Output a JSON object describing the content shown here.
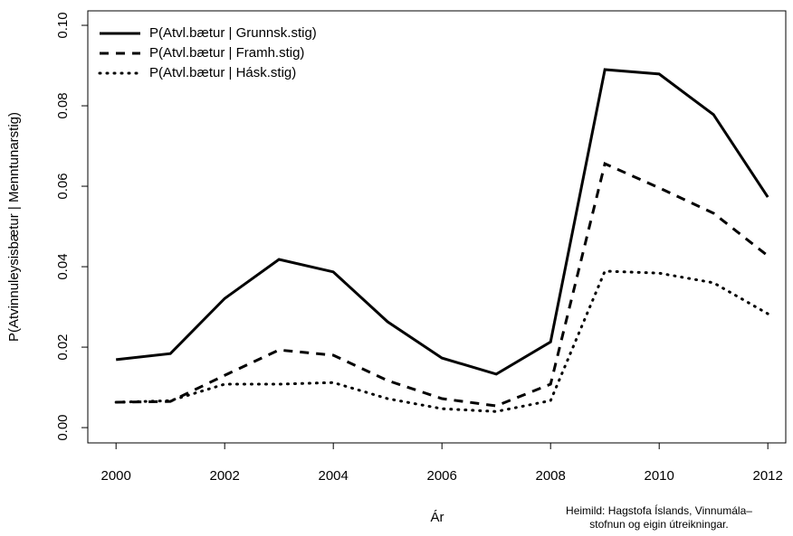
{
  "chart_data": {
    "type": "line",
    "xlabel": "Ár",
    "ylabel": "P(Atvinnuleysisbætur | Menntunarstig)",
    "source": [
      "Heimild: Hagstofa Íslands, Vinnumála–",
      "stofnun og eigin útreikningar."
    ],
    "x": [
      2000,
      2001,
      2002,
      2003,
      2004,
      2005,
      2006,
      2007,
      2008,
      2009,
      2010,
      2011,
      2012
    ],
    "series": [
      {
        "name": "P(Atvl.bætur | Grunnsk.stig)",
        "color": "#000000",
        "line_style": "solid",
        "values": [
          0.0169,
          0.0184,
          0.0321,
          0.0418,
          0.0387,
          0.0263,
          0.0173,
          0.0133,
          0.0213,
          0.089,
          0.0879,
          0.0778,
          0.0573
        ]
      },
      {
        "name": "P(Atvl.bætur | Framh.stig)",
        "color": "#000000",
        "line_style": "dashed",
        "values": [
          0.0063,
          0.0065,
          0.013,
          0.0193,
          0.018,
          0.0117,
          0.0072,
          0.0054,
          0.0108,
          0.0656,
          0.0596,
          0.0533,
          0.0427
        ]
      },
      {
        "name": "P(Atvl.bætur | Hásk.stig)",
        "color": "#000000",
        "line_style": "dotted",
        "values": [
          0.0063,
          0.0067,
          0.0108,
          0.0108,
          0.0112,
          0.0072,
          0.0047,
          0.004,
          0.0067,
          0.0389,
          0.0384,
          0.036,
          0.0283
        ]
      }
    ],
    "xlim": [
      1999.48,
      2012.33
    ],
    "ylim": [
      -0.0038,
      0.1036
    ],
    "xticks": [
      2000,
      2002,
      2004,
      2006,
      2008,
      2010,
      2012
    ],
    "yticks": [
      {
        "value": 0,
        "label": "0.00"
      },
      {
        "value": 0.02,
        "label": "0.02"
      },
      {
        "value": 0.04,
        "label": "0.04"
      },
      {
        "value": 0.06,
        "label": "0.06"
      },
      {
        "value": 0.08,
        "label": "0.08"
      },
      {
        "value": 0.1,
        "label": "0.10"
      }
    ],
    "legend": "top-left"
  }
}
